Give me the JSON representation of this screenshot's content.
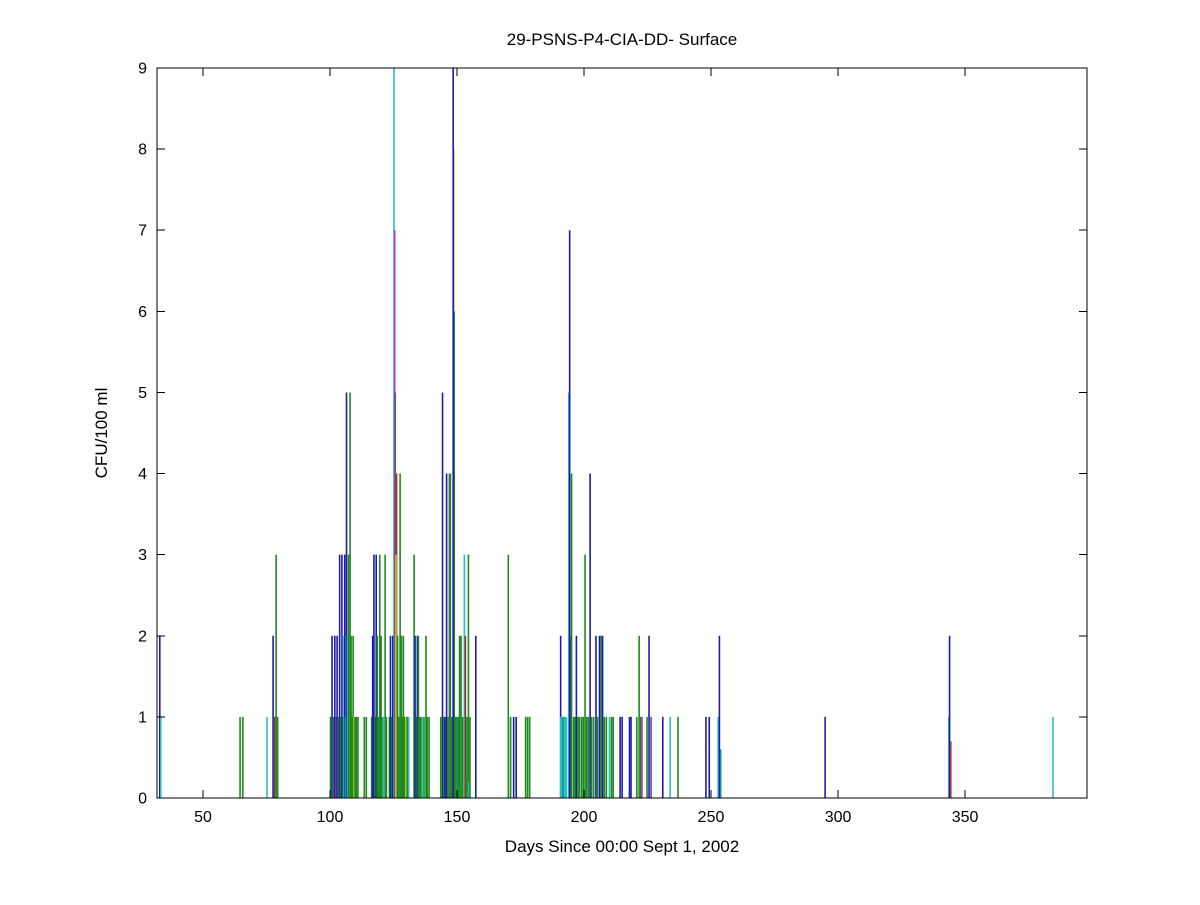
{
  "figure": {
    "background": "#ffffff"
  },
  "chart_data": {
    "type": "bar",
    "subtype": "stem-event-series",
    "title": "29-PSNS-P4-CIA-DD- Surface",
    "xlabel": "Days Since 00:00 Sept 1, 2002",
    "ylabel": "CFU/100 ml",
    "xlim": [
      31.9,
      398
    ],
    "ylim": [
      0,
      9
    ],
    "xticks": [
      50,
      100,
      150,
      200,
      250,
      300,
      350
    ],
    "yticks": [
      0,
      1,
      2,
      3,
      4,
      5,
      6,
      7,
      8,
      9
    ],
    "grid": false,
    "legend_position": "none",
    "axis_color": "#000000",
    "series_colors": {
      "navy": "#1c1cae",
      "green": "#1e8a1e",
      "cyan": "#25c2c5",
      "magenta": "#bd2dbd",
      "olive": "#c3ca27",
      "maroon": "#94382a",
      "slate": "#54616e",
      "purple": "#7a35b5",
      "teal": "#1d9292",
      "red": "#c03a2e"
    },
    "stems": [
      [
        33.0,
        2,
        "navy"
      ],
      [
        33.4,
        1,
        "cyan"
      ],
      [
        64.6,
        1,
        "green"
      ],
      [
        65.7,
        1,
        "green"
      ],
      [
        75.2,
        1,
        "cyan"
      ],
      [
        77.6,
        2,
        "navy"
      ],
      [
        78.2,
        1,
        "maroon"
      ],
      [
        78.8,
        3,
        "green"
      ],
      [
        79.4,
        1,
        "green"
      ],
      [
        100.2,
        1,
        "green"
      ],
      [
        100.8,
        2,
        "navy"
      ],
      [
        101.4,
        1,
        "green"
      ],
      [
        101.9,
        2,
        "navy"
      ],
      [
        102.4,
        1,
        "magenta"
      ],
      [
        102.8,
        2,
        "navy"
      ],
      [
        103.3,
        1,
        "green"
      ],
      [
        103.8,
        3,
        "navy"
      ],
      [
        104.2,
        1,
        "green"
      ],
      [
        104.7,
        3,
        "navy"
      ],
      [
        105.2,
        1,
        "green"
      ],
      [
        105.5,
        2,
        "cyan"
      ],
      [
        105.8,
        3,
        "navy"
      ],
      [
        106.1,
        1,
        "cyan"
      ],
      [
        106.5,
        5,
        "navy"
      ],
      [
        106.9,
        2,
        "cyan"
      ],
      [
        107.3,
        3,
        "green"
      ],
      [
        107.9,
        5,
        "green"
      ],
      [
        108.3,
        2,
        "green"
      ],
      [
        108.7,
        1,
        "green"
      ],
      [
        109.1,
        2,
        "green"
      ],
      [
        109.5,
        1,
        "olive"
      ],
      [
        109.9,
        1,
        "green"
      ],
      [
        110.4,
        1,
        "green"
      ],
      [
        111.0,
        1,
        "green"
      ],
      [
        113.5,
        1,
        "green"
      ],
      [
        114.3,
        1,
        "green"
      ],
      [
        116.4,
        1,
        "green"
      ],
      [
        116.8,
        2,
        "navy"
      ],
      [
        117.3,
        3,
        "navy"
      ],
      [
        117.7,
        1,
        "green"
      ],
      [
        118.2,
        3,
        "navy"
      ],
      [
        118.6,
        2,
        "green"
      ],
      [
        119.0,
        1,
        "green"
      ],
      [
        119.6,
        3,
        "green"
      ],
      [
        120.1,
        2,
        "green"
      ],
      [
        120.5,
        1,
        "green"
      ],
      [
        121.0,
        1,
        "cyan"
      ],
      [
        121.7,
        3,
        "green"
      ],
      [
        122.2,
        1,
        "green"
      ],
      [
        123.4,
        1,
        "green"
      ],
      [
        123.8,
        2,
        "navy"
      ],
      [
        124.3,
        1,
        "green"
      ],
      [
        124.7,
        2,
        "navy"
      ],
      [
        125.2,
        9,
        "cyan"
      ],
      [
        125.45,
        7,
        "magenta"
      ],
      [
        125.7,
        5,
        "slate"
      ],
      [
        126.2,
        4,
        "maroon"
      ],
      [
        125.95,
        3,
        "olive"
      ],
      [
        126.6,
        2,
        "green"
      ],
      [
        127.0,
        1,
        "green"
      ],
      [
        127.6,
        4,
        "green"
      ],
      [
        128.1,
        2,
        "green"
      ],
      [
        128.5,
        1,
        "green"
      ],
      [
        128.9,
        2,
        "green"
      ],
      [
        129.4,
        1,
        "green"
      ],
      [
        129.9,
        1,
        "olive"
      ],
      [
        130.4,
        1,
        "green"
      ],
      [
        131.0,
        1,
        "cyan"
      ],
      [
        133.1,
        3,
        "green"
      ],
      [
        133.5,
        2,
        "navy"
      ],
      [
        134.0,
        1,
        "green"
      ],
      [
        134.4,
        2,
        "navy"
      ],
      [
        134.8,
        2,
        "green"
      ],
      [
        135.3,
        1,
        "green"
      ],
      [
        135.8,
        1,
        "green"
      ],
      [
        136.3,
        1,
        "cyan"
      ],
      [
        137.0,
        1,
        "green"
      ],
      [
        137.8,
        2,
        "green"
      ],
      [
        138.3,
        1,
        "green"
      ],
      [
        139.0,
        1,
        "green"
      ],
      [
        143.6,
        1,
        "green"
      ],
      [
        144.3,
        5,
        "navy"
      ],
      [
        144.8,
        1,
        "green"
      ],
      [
        145.3,
        1,
        "navy"
      ],
      [
        145.9,
        4,
        "navy"
      ],
      [
        146.4,
        1,
        "green"
      ],
      [
        147.0,
        4,
        "slate"
      ],
      [
        147.4,
        4,
        "green"
      ],
      [
        147.9,
        1,
        "green"
      ],
      [
        148.75,
        8,
        "olive"
      ],
      [
        148.9,
        6,
        "green"
      ],
      [
        148.5,
        9,
        "navy"
      ],
      [
        149.5,
        1,
        "green"
      ],
      [
        150.0,
        1,
        "teal"
      ],
      [
        150.5,
        1,
        "green"
      ],
      [
        151.0,
        2,
        "green"
      ],
      [
        151.6,
        2,
        "green"
      ],
      [
        152.2,
        1,
        "green"
      ],
      [
        152.9,
        3,
        "cyan"
      ],
      [
        153.3,
        2,
        "maroon"
      ],
      [
        153.9,
        1,
        "green"
      ],
      [
        154.5,
        3,
        "green"
      ],
      [
        154.7,
        0.2,
        "cyan"
      ],
      [
        155.1,
        1,
        "green"
      ],
      [
        157.4,
        2,
        "navy"
      ],
      [
        170.2,
        3,
        "green"
      ],
      [
        171.1,
        1,
        "green"
      ],
      [
        172.3,
        1,
        "navy"
      ],
      [
        173.3,
        1,
        "navy"
      ],
      [
        177.0,
        1,
        "green"
      ],
      [
        177.8,
        1,
        "green"
      ],
      [
        178.6,
        1,
        "green"
      ],
      [
        190.8,
        2,
        "navy"
      ],
      [
        191.1,
        1,
        "cyan",
        3
      ],
      [
        192.3,
        1,
        "cyan",
        3
      ],
      [
        191.7,
        1,
        "teal"
      ],
      [
        193.1,
        1,
        "cyan"
      ],
      [
        194.0,
        5,
        "cyan"
      ],
      [
        194.8,
        2,
        "magenta"
      ],
      [
        194.35,
        7,
        "navy"
      ],
      [
        195.1,
        4,
        "green"
      ],
      [
        195.9,
        1,
        "green"
      ],
      [
        196.5,
        1,
        "green"
      ],
      [
        197.0,
        2,
        "navy"
      ],
      [
        197.6,
        1,
        "green"
      ],
      [
        198.2,
        1,
        "green"
      ],
      [
        199.0,
        1,
        "green"
      ],
      [
        199.7,
        1,
        "green"
      ],
      [
        200.4,
        3,
        "green"
      ],
      [
        201.0,
        1,
        "green"
      ],
      [
        201.7,
        1,
        "green"
      ],
      [
        202.4,
        4,
        "navy"
      ],
      [
        203.0,
        1,
        "green"
      ],
      [
        203.8,
        1,
        "green"
      ],
      [
        204.7,
        2,
        "navy"
      ],
      [
        205.3,
        1,
        "green"
      ],
      [
        206.1,
        2,
        "navy"
      ],
      [
        206.7,
        2,
        "green"
      ],
      [
        207.3,
        2,
        "navy"
      ],
      [
        208.0,
        1,
        "green"
      ],
      [
        208.8,
        1,
        "green"
      ],
      [
        210.0,
        1,
        "cyan"
      ],
      [
        210.8,
        1,
        "green"
      ],
      [
        211.5,
        1,
        "green"
      ],
      [
        214.2,
        1,
        "navy"
      ],
      [
        215.0,
        1,
        "navy"
      ],
      [
        217.9,
        1,
        "navy"
      ],
      [
        218.5,
        1,
        "navy"
      ],
      [
        220.8,
        1,
        "green"
      ],
      [
        221.7,
        2,
        "green"
      ],
      [
        222.3,
        1,
        "green"
      ],
      [
        222.8,
        1,
        "magenta"
      ],
      [
        224.8,
        1,
        "green"
      ],
      [
        225.6,
        2,
        "navy"
      ],
      [
        226.4,
        1,
        "purple"
      ],
      [
        231.0,
        1,
        "navy"
      ],
      [
        233.9,
        1,
        "cyan"
      ],
      [
        237.0,
        1,
        "green"
      ],
      [
        248.0,
        1,
        "navy"
      ],
      [
        249.3,
        1,
        "navy"
      ],
      [
        252.8,
        1,
        "cyan"
      ],
      [
        253.3,
        2,
        "navy"
      ],
      [
        253.8,
        0.6,
        "teal"
      ],
      [
        294.9,
        1,
        "navy"
      ],
      [
        343.6,
        1,
        "cyan"
      ],
      [
        343.9,
        2,
        "navy"
      ],
      [
        344.4,
        0.7,
        "red"
      ],
      [
        384.6,
        1,
        "cyan"
      ]
    ]
  },
  "layout_note": "single axes, white background, black frame with inward ticks on all four sides"
}
